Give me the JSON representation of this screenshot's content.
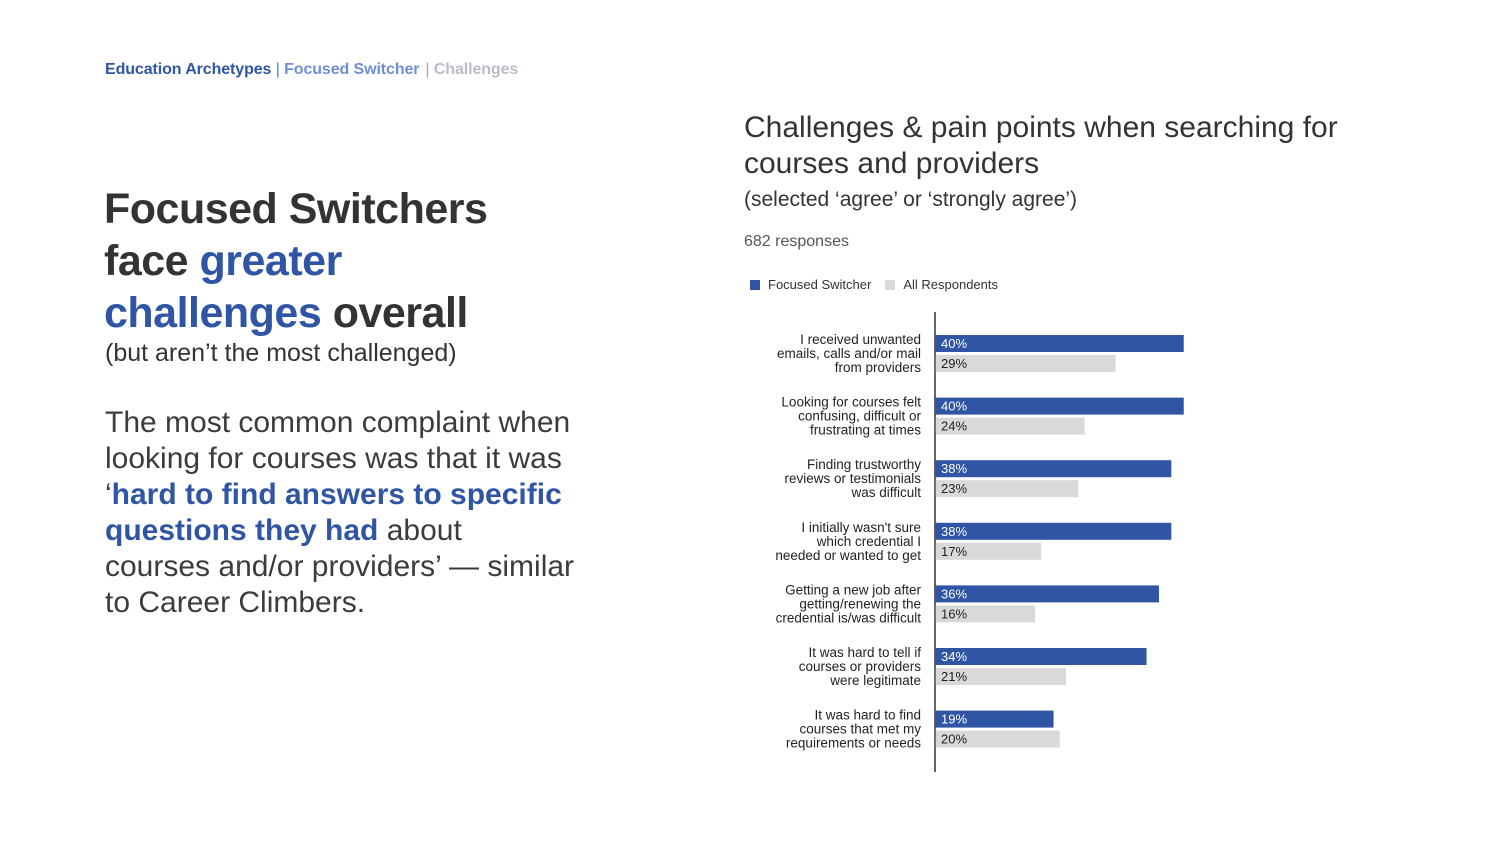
{
  "breadcrumb": {
    "part1": "Education Archetypes",
    "sep1": " | ",
    "part2": "Focused Switcher",
    "sep2": "| ",
    "part3": "Challenges"
  },
  "headline": {
    "line1": "Focused Switchers",
    "line2a": "face ",
    "line2b": "greater",
    "line3a": "challenges",
    "line3b": " overall"
  },
  "subhead": "(but aren’t the most challenged)",
  "body": {
    "p1": "The most common complaint when looking for courses was that it was ‘",
    "p2": "hard to find answers to specific questions they had",
    "p3": " about courses and/or providers’ — similar to Career Climbers."
  },
  "colors": {
    "focused": "#2f55a4",
    "all": "#d9d9d9",
    "axis": "#333333"
  },
  "chart_data": {
    "type": "bar",
    "orientation": "horizontal",
    "title": "Challenges & pain points when searching for courses and providers",
    "subtitle": "(selected ‘agree’ or ‘strongly agree’)",
    "note": "682 responses",
    "legend": [
      "Focused Switcher",
      "All Respondents"
    ],
    "legend_position": "top-left",
    "categories": [
      [
        "I received unwanted",
        "emails, calls and/or mail",
        "from providers"
      ],
      [
        "Looking for courses felt",
        "confusing, difficult or",
        "frustrating at times"
      ],
      [
        "Finding trustworthy",
        "reviews or testimonials",
        "was difficult"
      ],
      [
        "I initially wasn't sure",
        "which credential I",
        "needed or wanted to get"
      ],
      [
        "Getting a new job after",
        "getting/renewing the",
        "credential is/was difficult"
      ],
      [
        "It was hard to tell if",
        "courses or providers",
        "were legitimate"
      ],
      [
        "It was hard to find",
        "courses that met my",
        "requirements or needs"
      ]
    ],
    "series": [
      {
        "name": "Focused Switcher",
        "values": [
          40,
          40,
          38,
          38,
          36,
          34,
          19
        ],
        "labels": [
          "40%",
          "40%",
          "38%",
          "38%",
          "36%",
          "34%",
          "19%"
        ]
      },
      {
        "name": "All Respondents",
        "values": [
          29,
          24,
          23,
          17,
          16,
          21,
          20
        ],
        "labels": [
          "29%",
          "24%",
          "23%",
          "17%",
          "16%",
          "21%",
          "20%"
        ]
      }
    ],
    "xlim": [
      0,
      100
    ]
  }
}
